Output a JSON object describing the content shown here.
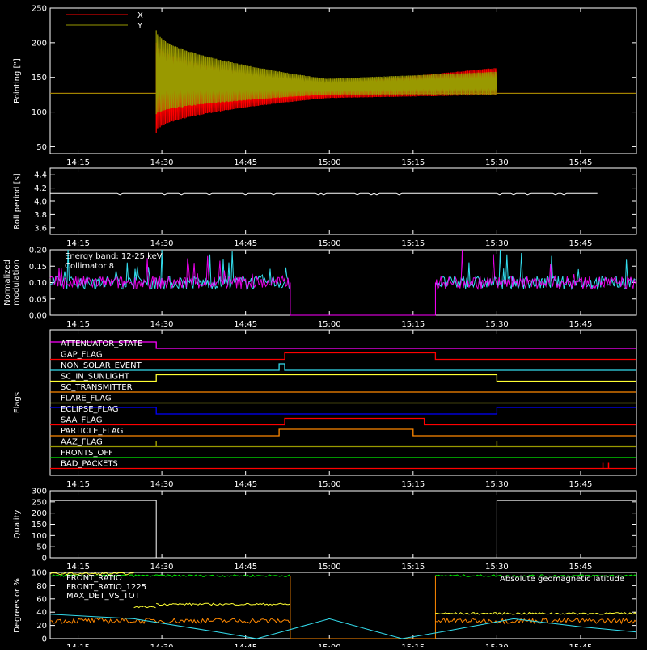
{
  "colors": {
    "background": "#000000",
    "axis": "#ffffff",
    "red": "#ff0000",
    "olive": "#999900",
    "cyan": "#33ddee",
    "magenta": "#ff00ff",
    "yellow": "#ffff33",
    "orange": "#ff8800",
    "blue": "#0000ff",
    "green": "#00ee00",
    "mauve": "#aa4477",
    "white": "#ffffff"
  },
  "x_tick_labels": [
    "14:15",
    "14:30",
    "14:45",
    "15:00",
    "15:15",
    "15:30",
    "15:45"
  ],
  "chart_data": [
    {
      "id": "pointing",
      "type": "line",
      "ylabel": "Pointing [\"]",
      "ylim": [
        40,
        250
      ],
      "y_ticks": [
        "50",
        "100",
        "150",
        "200",
        "250"
      ],
      "legend": [
        "X",
        "Y"
      ],
      "legend_position": "top-left",
      "x_range": [
        "14:10",
        "15:55"
      ],
      "series": [
        {
          "name": "X",
          "color": "red",
          "baseline": 127,
          "active": [
            "14:29",
            "15:30"
          ],
          "envelope_start": [
            70,
            200
          ],
          "envelope_mid": [
            120,
            140
          ],
          "envelope_end": [
            135,
            180
          ]
        },
        {
          "name": "Y",
          "color": "olive",
          "baseline": 127,
          "active": [
            "14:29",
            "15:30"
          ],
          "envelope_start": [
            95,
            220
          ],
          "envelope_mid": [
            125,
            148
          ],
          "envelope_end": [
            125,
            165
          ]
        }
      ]
    },
    {
      "id": "roll",
      "type": "line",
      "ylabel": "Roll period [s]",
      "ylim": [
        3.5,
        4.5
      ],
      "y_ticks": [
        "3.6",
        "3.8",
        "4.0",
        "4.2",
        "4.4"
      ],
      "x_range": [
        "14:10",
        "15:55"
      ],
      "series": [
        {
          "name": "",
          "color": "white",
          "value": 4.12,
          "gap": [
            "15:48",
            "15:55"
          ]
        }
      ]
    },
    {
      "id": "modulation",
      "type": "line",
      "ylabel": "Normalized modulation",
      "ylim": [
        0,
        0.2
      ],
      "y_ticks": [
        "0.00",
        "0.05",
        "0.10",
        "0.15",
        "0.20"
      ],
      "annotations": [
        "Energy band: 12-25 keV",
        "Collimator 8"
      ],
      "x_range": [
        "14:10",
        "15:55"
      ],
      "series": [
        {
          "name": "",
          "color": "cyan",
          "level": 0.1,
          "active": [
            [
              "14:10",
              "14:53"
            ],
            [
              "15:19",
              "15:55"
            ]
          ]
        },
        {
          "name": "",
          "color": "magenta",
          "level": 0.1,
          "active": [
            [
              "14:10",
              "14:53"
            ],
            [
              "15:19",
              "15:55"
            ]
          ]
        }
      ]
    },
    {
      "id": "flags",
      "type": "line",
      "ylabel": "Flags",
      "x_range": [
        "14:10",
        "15:55"
      ],
      "series": [
        {
          "name": "ATTENUATOR_STATE",
          "color": "magenta",
          "segments": [
            [
              "14:10",
              "14:29",
              1
            ],
            [
              "14:29",
              "15:55",
              0
            ]
          ]
        },
        {
          "name": "GAP_FLAG",
          "color": "red",
          "segments": [
            [
              "14:10",
              "14:52",
              0
            ],
            [
              "14:52",
              "15:19",
              1
            ],
            [
              "15:19",
              "15:55",
              0
            ]
          ]
        },
        {
          "name": "NON_SOLAR_EVENT",
          "color": "cyan",
          "segments": [
            [
              "14:10",
              "14:51",
              0
            ],
            [
              "14:51",
              "14:52",
              1
            ],
            [
              "14:52",
              "15:55",
              0
            ]
          ]
        },
        {
          "name": "SC_IN_SUNLIGHT",
          "color": "yellow",
          "segments": [
            [
              "14:10",
              "14:29",
              0
            ],
            [
              "14:29",
              "15:30",
              1
            ],
            [
              "15:30",
              "15:55",
              0
            ]
          ]
        },
        {
          "name": "SC_TRANSMITTER",
          "color": "orange",
          "segments": [
            [
              "14:10",
              "15:55",
              0
            ]
          ]
        },
        {
          "name": "FLARE_FLAG",
          "color": "yellow",
          "segments": [
            [
              "14:10",
              "15:55",
              0
            ]
          ]
        },
        {
          "name": "ECLIPSE_FLAG",
          "color": "blue",
          "segments": [
            [
              "14:10",
              "14:29",
              1
            ],
            [
              "14:29",
              "15:30",
              0
            ],
            [
              "15:30",
              "15:55",
              1
            ]
          ]
        },
        {
          "name": "SAA_FLAG",
          "color": "red",
          "segments": [
            [
              "14:10",
              "14:52",
              0
            ],
            [
              "14:52",
              "15:17",
              1
            ],
            [
              "15:17",
              "15:55",
              0
            ]
          ]
        },
        {
          "name": "PARTICLE_FLAG",
          "color": "orange",
          "segments": [
            [
              "14:10",
              "14:51",
              0
            ],
            [
              "14:51",
              "15:15",
              1
            ],
            [
              "15:15",
              "15:55",
              0
            ]
          ]
        },
        {
          "name": "AAZ_FLAG",
          "color": "olive",
          "segments": [
            [
              "14:10",
              "15:55",
              0
            ]
          ],
          "spikes": [
            "14:29",
            "15:30"
          ]
        },
        {
          "name": "FRONTS_OFF",
          "color": "green",
          "segments": [
            [
              "14:10",
              "15:55",
              0
            ]
          ]
        },
        {
          "name": "BAD_PACKETS",
          "color": "red",
          "segments": [
            [
              "14:10",
              "15:55",
              0
            ]
          ],
          "spikes": [
            "15:49",
            "15:50"
          ]
        }
      ]
    },
    {
      "id": "quality",
      "type": "line",
      "ylabel": "Quality",
      "ylim": [
        0,
        300
      ],
      "y_ticks": [
        "0",
        "50",
        "100",
        "150",
        "200",
        "250",
        "300"
      ],
      "x_range": [
        "14:10",
        "15:55"
      ],
      "series": [
        {
          "name": "",
          "color": "white",
          "segments": [
            [
              "14:10",
              "14:29",
              256
            ],
            [
              "14:29",
              "15:30",
              0
            ],
            [
              "15:30",
              "15:55",
              256
            ]
          ]
        }
      ]
    },
    {
      "id": "ratios",
      "type": "line",
      "ylabel": "Degrees or %",
      "ylim": [
        0,
        100
      ],
      "y_ticks": [
        "0",
        "20",
        "40",
        "60",
        "80",
        "100"
      ],
      "legend": [
        "FRONT_RATIO",
        "FRONT_RATIO_1225",
        "MAX_DET_VS_TOT"
      ],
      "annotations": [
        "Absolute geomagnetic latitude"
      ],
      "x_range": [
        "14:10",
        "15:55"
      ],
      "series": [
        {
          "name": "FRONT_RATIO",
          "color": "green",
          "segments": [
            [
              "14:10",
              "14:53",
              95
            ],
            [
              "15:19",
              "15:55",
              95
            ]
          ],
          "drop": [
            "14:53",
            "15:19"
          ]
        },
        {
          "name": "FRONT_RATIO_1225",
          "color": "yellow",
          "segments": [
            [
              "14:10",
              "14:25",
              98
            ],
            [
              "14:25",
              "14:29",
              48
            ],
            [
              "14:29",
              "14:53",
              52
            ],
            [
              "15:19",
              "15:55",
              38
            ]
          ]
        },
        {
          "name": "MAX_DET_VS_TOT",
          "color": "orange",
          "segments": [
            [
              "14:10",
              "14:53",
              27
            ],
            [
              "15:19",
              "15:55",
              27
            ]
          ]
        },
        {
          "name": "Absolute geomagnetic latitude",
          "color": "cyan",
          "points": [
            [
              "14:10",
              37
            ],
            [
              "14:25",
              30
            ],
            [
              "14:40",
              10
            ],
            [
              "14:47",
              0
            ],
            [
              "15:00",
              30
            ],
            [
              "15:13",
              0
            ],
            [
              "15:20",
              10
            ],
            [
              "15:33",
              30
            ],
            [
              "15:45",
              18
            ],
            [
              "15:55",
              10
            ]
          ]
        }
      ]
    }
  ]
}
